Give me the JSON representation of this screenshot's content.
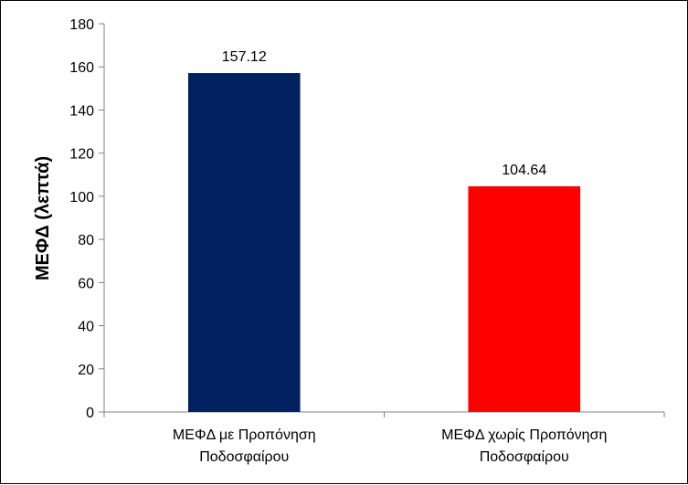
{
  "chart_data": {
    "type": "bar",
    "categories": [
      [
        "ΜΕΦΔ με Προπόνηση",
        "Ποδοσφαίρου"
      ],
      [
        "ΜΕΦΔ χωρίς Προπόνηση",
        "Ποδοσφαίρου"
      ]
    ],
    "values": [
      157.12,
      104.64
    ],
    "value_labels": [
      "157.12",
      "104.64"
    ],
    "colors": [
      "#002060",
      "#ff0000"
    ],
    "ylabel": "ΜΕΦΔ (λεπτά)",
    "ylim": [
      0,
      180
    ],
    "yticks": [
      0,
      20,
      40,
      60,
      80,
      100,
      120,
      140,
      160,
      180
    ],
    "grid": false,
    "legend": "none"
  }
}
